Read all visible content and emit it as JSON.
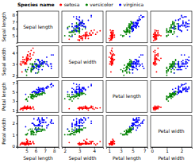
{
  "chart_data": {
    "type": "scatter",
    "marker": "circle",
    "legend": "top",
    "legend_title": "Species name",
    "dimensions": [
      {
        "label": "Sepal length",
        "lim": [
          4,
          8.5
        ],
        "ticks": [
          5,
          6,
          7,
          8
        ]
      },
      {
        "label": "Sepal width",
        "lim": [
          1.8,
          4.6
        ],
        "ticks": [
          2,
          3,
          4
        ]
      },
      {
        "label": "Petal length",
        "lim": [
          0.5,
          7.5
        ],
        "ticks": [
          1,
          3,
          5,
          7
        ]
      },
      {
        "label": "Petal width",
        "lim": [
          -0.1,
          2.7
        ],
        "ticks": [
          0,
          1,
          2
        ]
      }
    ],
    "series": [
      {
        "name": "setosa",
        "color": "#ff0000",
        "values": [
          [
            5.1,
            3.5,
            1.4,
            0.2
          ],
          [
            4.9,
            3.0,
            1.4,
            0.2
          ],
          [
            4.7,
            3.2,
            1.3,
            0.2
          ],
          [
            4.6,
            3.1,
            1.5,
            0.2
          ],
          [
            5.0,
            3.6,
            1.4,
            0.2
          ],
          [
            5.4,
            3.9,
            1.7,
            0.4
          ],
          [
            4.6,
            3.4,
            1.4,
            0.3
          ],
          [
            5.0,
            3.4,
            1.5,
            0.2
          ],
          [
            4.4,
            2.9,
            1.4,
            0.2
          ],
          [
            4.9,
            3.1,
            1.5,
            0.1
          ],
          [
            5.4,
            3.7,
            1.5,
            0.2
          ],
          [
            4.8,
            3.4,
            1.6,
            0.2
          ],
          [
            4.8,
            3.0,
            1.4,
            0.1
          ],
          [
            4.3,
            3.0,
            1.1,
            0.1
          ],
          [
            5.8,
            4.0,
            1.2,
            0.2
          ],
          [
            5.7,
            4.4,
            1.5,
            0.4
          ],
          [
            5.4,
            3.9,
            1.3,
            0.4
          ],
          [
            5.1,
            3.5,
            1.4,
            0.3
          ],
          [
            5.7,
            3.8,
            1.7,
            0.3
          ],
          [
            5.1,
            3.8,
            1.5,
            0.3
          ],
          [
            5.4,
            3.4,
            1.7,
            0.2
          ],
          [
            5.1,
            3.7,
            1.5,
            0.4
          ],
          [
            4.6,
            3.6,
            1.0,
            0.2
          ],
          [
            5.1,
            3.3,
            1.7,
            0.5
          ],
          [
            4.8,
            3.4,
            1.9,
            0.2
          ],
          [
            5.0,
            3.0,
            1.6,
            0.2
          ],
          [
            5.0,
            3.4,
            1.6,
            0.4
          ],
          [
            5.2,
            3.5,
            1.5,
            0.2
          ],
          [
            5.2,
            3.4,
            1.4,
            0.2
          ],
          [
            4.7,
            3.2,
            1.6,
            0.2
          ],
          [
            4.8,
            3.1,
            1.6,
            0.2
          ],
          [
            5.4,
            3.4,
            1.5,
            0.4
          ],
          [
            5.2,
            4.1,
            1.5,
            0.1
          ],
          [
            5.5,
            4.2,
            1.4,
            0.2
          ],
          [
            4.9,
            3.1,
            1.5,
            0.1
          ],
          [
            5.0,
            3.2,
            1.2,
            0.2
          ],
          [
            5.5,
            3.5,
            1.3,
            0.2
          ],
          [
            4.9,
            3.1,
            1.5,
            0.1
          ],
          [
            4.4,
            3.0,
            1.3,
            0.2
          ],
          [
            5.1,
            3.4,
            1.5,
            0.2
          ],
          [
            5.0,
            3.5,
            1.3,
            0.3
          ],
          [
            4.5,
            2.3,
            1.3,
            0.3
          ],
          [
            4.4,
            3.2,
            1.3,
            0.2
          ],
          [
            5.0,
            3.5,
            1.6,
            0.6
          ],
          [
            5.1,
            3.8,
            1.9,
            0.4
          ],
          [
            4.8,
            3.0,
            1.4,
            0.3
          ],
          [
            5.1,
            3.8,
            1.6,
            0.2
          ],
          [
            4.6,
            3.2,
            1.4,
            0.2
          ],
          [
            5.3,
            3.7,
            1.5,
            0.2
          ],
          [
            5.0,
            3.3,
            1.4,
            0.2
          ]
        ]
      },
      {
        "name": "versicolor",
        "color": "#008000",
        "values": [
          [
            7.0,
            3.2,
            4.7,
            1.4
          ],
          [
            6.4,
            3.2,
            4.5,
            1.5
          ],
          [
            6.9,
            3.1,
            4.9,
            1.5
          ],
          [
            5.5,
            2.3,
            4.0,
            1.3
          ],
          [
            6.5,
            2.8,
            4.6,
            1.5
          ],
          [
            5.7,
            2.8,
            4.5,
            1.3
          ],
          [
            6.3,
            3.3,
            4.7,
            1.6
          ],
          [
            4.9,
            2.4,
            3.3,
            1.0
          ],
          [
            6.6,
            2.9,
            4.6,
            1.3
          ],
          [
            5.2,
            2.7,
            3.9,
            1.4
          ],
          [
            5.0,
            2.0,
            3.5,
            1.0
          ],
          [
            5.9,
            3.0,
            4.2,
            1.5
          ],
          [
            6.0,
            2.2,
            4.0,
            1.0
          ],
          [
            6.1,
            2.9,
            4.7,
            1.4
          ],
          [
            5.6,
            2.9,
            3.6,
            1.3
          ],
          [
            6.7,
            3.1,
            4.4,
            1.4
          ],
          [
            5.6,
            3.0,
            4.5,
            1.5
          ],
          [
            5.8,
            2.7,
            4.1,
            1.0
          ],
          [
            6.2,
            2.2,
            4.5,
            1.5
          ],
          [
            5.6,
            2.5,
            3.9,
            1.1
          ],
          [
            5.9,
            3.2,
            4.8,
            1.8
          ],
          [
            6.1,
            2.8,
            4.0,
            1.3
          ],
          [
            6.3,
            2.5,
            4.9,
            1.5
          ],
          [
            6.1,
            2.8,
            4.7,
            1.2
          ],
          [
            6.4,
            2.9,
            4.3,
            1.3
          ],
          [
            6.6,
            3.0,
            4.4,
            1.4
          ],
          [
            6.8,
            2.8,
            4.8,
            1.4
          ],
          [
            6.7,
            3.0,
            5.0,
            1.7
          ],
          [
            6.0,
            2.9,
            4.5,
            1.5
          ],
          [
            5.7,
            2.6,
            3.5,
            1.0
          ],
          [
            5.5,
            2.4,
            3.8,
            1.1
          ],
          [
            5.5,
            2.4,
            3.7,
            1.0
          ],
          [
            5.8,
            2.7,
            3.9,
            1.2
          ],
          [
            6.0,
            2.7,
            5.1,
            1.6
          ],
          [
            5.4,
            3.0,
            4.5,
            1.5
          ],
          [
            6.0,
            3.4,
            4.5,
            1.6
          ],
          [
            6.7,
            3.1,
            4.7,
            1.5
          ],
          [
            6.3,
            2.3,
            4.4,
            1.3
          ],
          [
            5.6,
            3.0,
            4.1,
            1.3
          ],
          [
            5.5,
            2.5,
            4.0,
            1.3
          ],
          [
            5.5,
            2.6,
            4.4,
            1.2
          ],
          [
            6.1,
            3.0,
            4.6,
            1.4
          ],
          [
            5.8,
            2.6,
            4.0,
            1.2
          ],
          [
            5.0,
            2.3,
            3.3,
            1.0
          ],
          [
            5.6,
            2.7,
            4.2,
            1.3
          ],
          [
            5.7,
            3.0,
            4.2,
            1.2
          ],
          [
            5.7,
            2.9,
            4.2,
            1.3
          ],
          [
            6.2,
            2.9,
            4.3,
            1.3
          ],
          [
            5.1,
            2.5,
            3.0,
            1.1
          ],
          [
            5.7,
            2.8,
            4.1,
            1.3
          ]
        ]
      },
      {
        "name": "virginica",
        "color": "#0000ff",
        "values": [
          [
            6.3,
            3.3,
            6.0,
            2.5
          ],
          [
            5.8,
            2.7,
            5.1,
            1.9
          ],
          [
            7.1,
            3.0,
            5.9,
            2.1
          ],
          [
            6.3,
            2.9,
            5.6,
            1.8
          ],
          [
            6.5,
            3.0,
            5.8,
            2.2
          ],
          [
            7.6,
            3.0,
            6.6,
            2.1
          ],
          [
            4.9,
            2.5,
            4.5,
            1.7
          ],
          [
            7.3,
            2.9,
            6.3,
            1.8
          ],
          [
            6.7,
            2.5,
            5.8,
            1.8
          ],
          [
            7.2,
            3.6,
            6.1,
            2.5
          ],
          [
            6.5,
            3.2,
            5.1,
            2.0
          ],
          [
            6.4,
            2.7,
            5.3,
            1.9
          ],
          [
            6.8,
            3.0,
            5.5,
            2.1
          ],
          [
            5.7,
            2.5,
            5.0,
            2.0
          ],
          [
            5.8,
            2.8,
            5.1,
            2.4
          ],
          [
            6.4,
            3.2,
            5.3,
            2.3
          ],
          [
            6.5,
            3.0,
            5.5,
            1.8
          ],
          [
            7.7,
            3.8,
            6.7,
            2.2
          ],
          [
            7.7,
            2.6,
            6.9,
            2.3
          ],
          [
            6.0,
            2.2,
            5.0,
            1.5
          ],
          [
            6.9,
            3.2,
            5.7,
            2.3
          ],
          [
            5.6,
            2.8,
            4.9,
            2.0
          ],
          [
            7.7,
            2.8,
            6.7,
            2.0
          ],
          [
            6.3,
            2.7,
            4.9,
            1.8
          ],
          [
            6.7,
            3.3,
            5.7,
            2.1
          ],
          [
            7.2,
            3.2,
            6.0,
            1.8
          ],
          [
            6.2,
            2.8,
            4.8,
            1.8
          ],
          [
            6.1,
            3.0,
            4.9,
            1.8
          ],
          [
            6.4,
            2.8,
            5.6,
            2.1
          ],
          [
            7.2,
            3.0,
            5.8,
            1.6
          ],
          [
            7.4,
            2.8,
            6.1,
            1.9
          ],
          [
            7.9,
            3.8,
            6.4,
            2.0
          ],
          [
            6.4,
            2.8,
            5.6,
            2.2
          ],
          [
            6.3,
            2.8,
            5.1,
            1.5
          ],
          [
            6.1,
            2.6,
            5.6,
            1.4
          ],
          [
            7.7,
            3.0,
            6.1,
            2.3
          ],
          [
            6.3,
            3.4,
            5.6,
            2.4
          ],
          [
            6.4,
            3.1,
            5.5,
            1.8
          ],
          [
            6.0,
            3.0,
            4.8,
            1.8
          ],
          [
            6.9,
            3.1,
            5.4,
            2.1
          ],
          [
            6.7,
            3.1,
            5.6,
            2.4
          ],
          [
            6.9,
            3.1,
            5.1,
            2.3
          ],
          [
            5.8,
            2.7,
            5.1,
            1.9
          ],
          [
            6.8,
            3.2,
            5.9,
            2.3
          ],
          [
            6.7,
            3.3,
            5.7,
            2.5
          ],
          [
            6.7,
            3.0,
            5.2,
            2.3
          ],
          [
            6.3,
            2.5,
            5.0,
            1.9
          ],
          [
            6.5,
            3.0,
            5.2,
            2.0
          ],
          [
            6.2,
            3.4,
            5.4,
            2.3
          ],
          [
            5.9,
            3.0,
            5.1,
            1.8
          ]
        ]
      }
    ]
  }
}
